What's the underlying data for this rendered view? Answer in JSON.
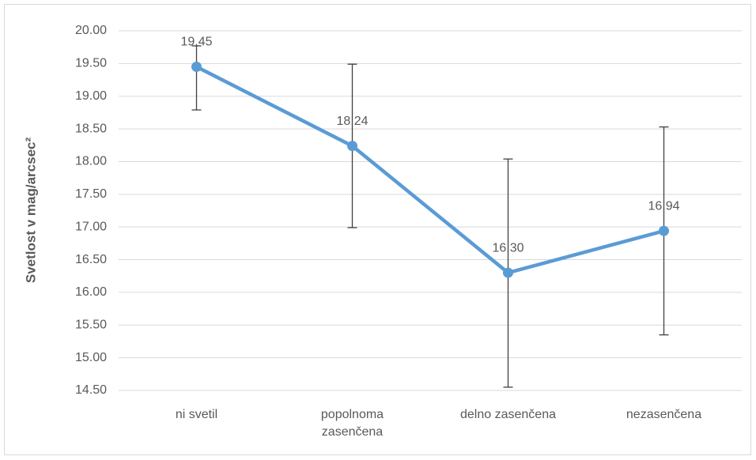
{
  "chart_data": {
    "type": "line",
    "ylabel": "Svetlost v mag/arcsec²",
    "categories": [
      "ni svetil",
      "popolnoma zasenčena",
      "delno zasenčena",
      "nezasenčena"
    ],
    "series": [
      {
        "name": "Svetlost",
        "color": "#5b9bd5",
        "values": [
          19.45,
          18.24,
          16.3,
          16.94
        ],
        "value_labels": [
          "19.45",
          "18.24",
          "16.30",
          "16.94"
        ],
        "error_plus": [
          0.32,
          1.25,
          1.74,
          1.59
        ],
        "error_minus": [
          0.66,
          1.25,
          1.75,
          1.59
        ]
      }
    ],
    "ylim": [
      14.5,
      20
    ],
    "yticks": [
      {
        "value": 14.5,
        "label": "14.50"
      },
      {
        "value": 15,
        "label": "15.00"
      },
      {
        "value": 15.5,
        "label": "15.50"
      },
      {
        "value": 16,
        "label": "16.00"
      },
      {
        "value": 16.5,
        "label": "16.50"
      },
      {
        "value": 17,
        "label": "17.00"
      },
      {
        "value": 17.5,
        "label": "17.50"
      },
      {
        "value": 18,
        "label": "18.00"
      },
      {
        "value": 18.5,
        "label": "18.50"
      },
      {
        "value": 19,
        "label": "19.00"
      },
      {
        "value": 19.5,
        "label": "19.50"
      },
      {
        "value": 20,
        "label": "20.00"
      }
    ],
    "grid": true
  }
}
